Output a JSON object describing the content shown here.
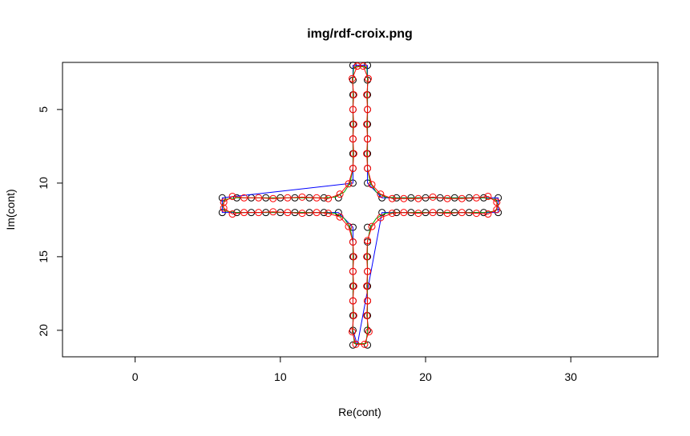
{
  "chart_data": {
    "type": "scatter",
    "title": "img/rdf-croix.png",
    "xlabel": "Re(cont)",
    "ylabel": "Im(cont)",
    "xlim": [
      -5,
      36
    ],
    "ylim": [
      21.8,
      1.8
    ],
    "y_inverted": true,
    "x_ticks": [
      0,
      10,
      20,
      30
    ],
    "y_ticks": [
      5,
      10,
      15,
      20
    ],
    "grid": false,
    "legend": "none",
    "series": [
      {
        "kind": "points",
        "color": "#000000",
        "marker": "open-circle",
        "points": [
          [
            15,
            2
          ],
          [
            16,
            2
          ],
          [
            15,
            3
          ],
          [
            16,
            3
          ],
          [
            15,
            4
          ],
          [
            16,
            4
          ],
          [
            15,
            5
          ],
          [
            16,
            5
          ],
          [
            15,
            6
          ],
          [
            16,
            6
          ],
          [
            15,
            7
          ],
          [
            16,
            7
          ],
          [
            15,
            8
          ],
          [
            16,
            8
          ],
          [
            15,
            9
          ],
          [
            16,
            9
          ],
          [
            15,
            10
          ],
          [
            16,
            10
          ],
          [
            6,
            11
          ],
          [
            7,
            11
          ],
          [
            8,
            11
          ],
          [
            9,
            11
          ],
          [
            10,
            11
          ],
          [
            11,
            11
          ],
          [
            12,
            11
          ],
          [
            13,
            11
          ],
          [
            14,
            11
          ],
          [
            17,
            11
          ],
          [
            18,
            11
          ],
          [
            19,
            11
          ],
          [
            20,
            11
          ],
          [
            21,
            11
          ],
          [
            22,
            11
          ],
          [
            23,
            11
          ],
          [
            24,
            11
          ],
          [
            25,
            11
          ],
          [
            6,
            12
          ],
          [
            7,
            12
          ],
          [
            8,
            12
          ],
          [
            9,
            12
          ],
          [
            10,
            12
          ],
          [
            11,
            12
          ],
          [
            12,
            12
          ],
          [
            13,
            12
          ],
          [
            14,
            12
          ],
          [
            17,
            12
          ],
          [
            18,
            12
          ],
          [
            19,
            12
          ],
          [
            20,
            12
          ],
          [
            21,
            12
          ],
          [
            22,
            12
          ],
          [
            23,
            12
          ],
          [
            24,
            12
          ],
          [
            25,
            12
          ],
          [
            15,
            13
          ],
          [
            16,
            13
          ],
          [
            15,
            14
          ],
          [
            16,
            14
          ],
          [
            15,
            15
          ],
          [
            16,
            15
          ],
          [
            15,
            16
          ],
          [
            16,
            16
          ],
          [
            15,
            17
          ],
          [
            16,
            17
          ],
          [
            15,
            18
          ],
          [
            16,
            18
          ],
          [
            15,
            19
          ],
          [
            16,
            19
          ],
          [
            15,
            20
          ],
          [
            16,
            20
          ],
          [
            15,
            21
          ],
          [
            16,
            21
          ]
        ]
      },
      {
        "kind": "line",
        "color": "#0000ff",
        "points": [
          [
            16,
            2
          ],
          [
            16,
            3
          ],
          [
            16,
            4
          ],
          [
            16,
            5
          ],
          [
            16,
            6
          ],
          [
            16,
            7
          ],
          [
            16,
            8
          ],
          [
            16,
            9
          ],
          [
            16,
            10
          ],
          [
            17,
            11
          ],
          [
            18,
            11
          ],
          [
            19,
            11
          ],
          [
            20,
            11
          ],
          [
            21,
            11
          ],
          [
            22,
            11
          ],
          [
            23,
            11
          ],
          [
            24,
            11
          ],
          [
            25,
            11
          ],
          [
            25,
            12
          ],
          [
            24,
            12
          ],
          [
            23,
            12
          ],
          [
            22,
            12
          ],
          [
            21,
            12
          ],
          [
            20,
            12
          ],
          [
            19,
            12
          ],
          [
            18,
            12
          ],
          [
            17,
            12
          ],
          [
            15.3,
            21
          ],
          [
            15,
            20
          ],
          [
            15,
            19
          ],
          [
            15,
            18
          ],
          [
            15,
            17
          ],
          [
            15,
            16
          ],
          [
            15,
            15
          ],
          [
            15,
            14
          ],
          [
            15,
            13
          ],
          [
            14,
            12
          ],
          [
            13,
            12
          ],
          [
            12,
            12
          ],
          [
            11,
            12
          ],
          [
            10,
            12
          ],
          [
            9,
            12
          ],
          [
            8,
            12
          ],
          [
            7,
            12
          ],
          [
            6,
            12
          ],
          [
            6,
            11
          ],
          [
            15,
            10
          ],
          [
            15,
            9
          ],
          [
            15,
            8
          ],
          [
            15,
            7
          ],
          [
            15,
            6
          ],
          [
            15,
            5
          ],
          [
            15,
            4
          ],
          [
            15,
            3
          ],
          [
            15,
            2
          ],
          [
            16,
            2
          ]
        ]
      },
      {
        "kind": "line",
        "color": "#00aa00",
        "points": [
          [
            15.05,
            2.1
          ],
          [
            15.95,
            2.1
          ],
          [
            16,
            3
          ],
          [
            16,
            4
          ],
          [
            16,
            5
          ],
          [
            16,
            6
          ],
          [
            16,
            7
          ],
          [
            16,
            8
          ],
          [
            16,
            9
          ],
          [
            16.2,
            10
          ],
          [
            16.6,
            10.6
          ],
          [
            17.2,
            10.95
          ],
          [
            18,
            11
          ],
          [
            19,
            11
          ],
          [
            20,
            11
          ],
          [
            21,
            11
          ],
          [
            22,
            11
          ],
          [
            23,
            11
          ],
          [
            24,
            11
          ],
          [
            24.8,
            11.1
          ],
          [
            25,
            11.5
          ],
          [
            24.8,
            11.9
          ],
          [
            24,
            12
          ],
          [
            23,
            12
          ],
          [
            22,
            12
          ],
          [
            21,
            12
          ],
          [
            20,
            12
          ],
          [
            19,
            12
          ],
          [
            18,
            12
          ],
          [
            17.2,
            12.05
          ],
          [
            16.6,
            12.4
          ],
          [
            16.2,
            13
          ],
          [
            16,
            14
          ],
          [
            16,
            15
          ],
          [
            16,
            16
          ],
          [
            16,
            17
          ],
          [
            16,
            18
          ],
          [
            16,
            19
          ],
          [
            16,
            20
          ],
          [
            15.9,
            20.9
          ],
          [
            15.1,
            20.9
          ],
          [
            15,
            20
          ],
          [
            15,
            19
          ],
          [
            15,
            18
          ],
          [
            15,
            17
          ],
          [
            15,
            16
          ],
          [
            15,
            15
          ],
          [
            15,
            14
          ],
          [
            14.8,
            13
          ],
          [
            14.4,
            12.4
          ],
          [
            13.8,
            12.05
          ],
          [
            13,
            12
          ],
          [
            12,
            12
          ],
          [
            11,
            12
          ],
          [
            10,
            12
          ],
          [
            9,
            12
          ],
          [
            8,
            12
          ],
          [
            7,
            12
          ],
          [
            6.2,
            11.9
          ],
          [
            6,
            11.5
          ],
          [
            6.2,
            11.1
          ],
          [
            7,
            11
          ],
          [
            8,
            11
          ],
          [
            9,
            11
          ],
          [
            10,
            11
          ],
          [
            11,
            11
          ],
          [
            12,
            11
          ],
          [
            13,
            11
          ],
          [
            13.8,
            10.95
          ],
          [
            14.4,
            10.6
          ],
          [
            14.8,
            10
          ],
          [
            15,
            9
          ],
          [
            15,
            8
          ],
          [
            15,
            7
          ],
          [
            15,
            6
          ],
          [
            15,
            5
          ],
          [
            15,
            4
          ],
          [
            15,
            3
          ],
          [
            15.05,
            2.1
          ]
        ]
      },
      {
        "kind": "line+points",
        "color": "#ff0000",
        "marker": "open-circle",
        "points": [
          [
            15.3,
            2.05
          ],
          [
            15.7,
            2.05
          ],
          [
            16.05,
            2.9
          ],
          [
            15.95,
            4
          ],
          [
            16,
            5
          ],
          [
            15.95,
            6
          ],
          [
            16,
            7
          ],
          [
            15.95,
            8
          ],
          [
            16,
            9
          ],
          [
            16.3,
            10.1
          ],
          [
            16.9,
            10.75
          ],
          [
            17.7,
            11.05
          ],
          [
            18.5,
            11.05
          ],
          [
            19.5,
            11.05
          ],
          [
            20.5,
            10.95
          ],
          [
            21.5,
            11.05
          ],
          [
            22.5,
            11.05
          ],
          [
            23.5,
            11
          ],
          [
            24.3,
            10.9
          ],
          [
            24.9,
            11.3
          ],
          [
            24.9,
            11.8
          ],
          [
            24.3,
            12.1
          ],
          [
            23.5,
            12.05
          ],
          [
            22.5,
            12
          ],
          [
            21.5,
            12.05
          ],
          [
            20.5,
            12
          ],
          [
            19.5,
            12.05
          ],
          [
            18.5,
            12
          ],
          [
            17.7,
            12.05
          ],
          [
            16.9,
            12.35
          ],
          [
            16.3,
            12.95
          ],
          [
            16,
            13.9
          ],
          [
            15.95,
            15
          ],
          [
            16,
            16
          ],
          [
            15.95,
            17
          ],
          [
            16,
            18
          ],
          [
            15.95,
            19
          ],
          [
            16.1,
            20.1
          ],
          [
            15.8,
            20.95
          ],
          [
            15.2,
            20.95
          ],
          [
            14.95,
            20.1
          ],
          [
            15.05,
            19
          ],
          [
            15,
            18
          ],
          [
            15.05,
            17
          ],
          [
            15,
            16
          ],
          [
            15.05,
            15
          ],
          [
            15,
            14
          ],
          [
            14.7,
            12.95
          ],
          [
            14.1,
            12.3
          ],
          [
            13.3,
            12.05
          ],
          [
            12.5,
            12
          ],
          [
            11.5,
            12.05
          ],
          [
            10.5,
            12
          ],
          [
            9.5,
            11.95
          ],
          [
            8.5,
            12
          ],
          [
            7.5,
            12
          ],
          [
            6.7,
            12.1
          ],
          [
            6.1,
            11.7
          ],
          [
            6.1,
            11.3
          ],
          [
            6.7,
            10.9
          ],
          [
            7.5,
            11
          ],
          [
            8.5,
            11
          ],
          [
            9.5,
            11.05
          ],
          [
            10.5,
            11
          ],
          [
            11.5,
            10.95
          ],
          [
            12.5,
            11
          ],
          [
            13.3,
            11.05
          ],
          [
            14.1,
            10.75
          ],
          [
            14.7,
            10.05
          ],
          [
            15,
            9
          ],
          [
            15.05,
            8
          ],
          [
            15,
            7
          ],
          [
            15.05,
            6
          ],
          [
            15,
            5
          ],
          [
            15.05,
            4
          ],
          [
            14.95,
            2.9
          ],
          [
            15.3,
            2.05
          ]
        ]
      }
    ]
  }
}
